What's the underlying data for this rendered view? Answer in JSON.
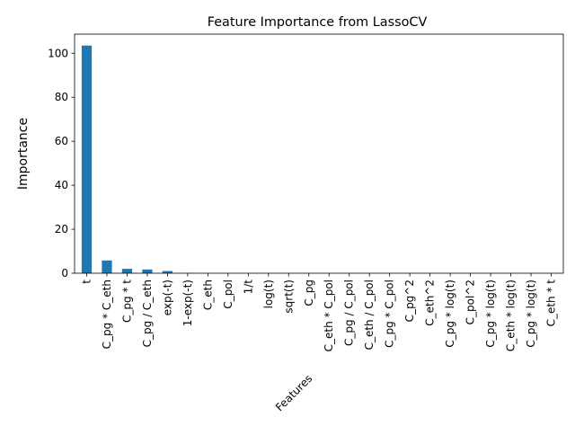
{
  "chart_data": {
    "type": "bar",
    "title": "Feature Importance from LassoCV",
    "xlabel": "Features",
    "ylabel": "Importance",
    "categories": [
      "t",
      "C_pg * C_eth",
      "C_pg * t",
      "C_pg / C_eth",
      "exp(-t)",
      "1-exp(-t)",
      "C_eth",
      "C_pol",
      "1/t",
      "log(t)",
      "sqrt(t)",
      "C_pg",
      "C_eth * C_pol",
      "C_pg / C_pol",
      "C_eth / C_pol",
      "C_pg * C_pol",
      "C_pg^2",
      "C_eth^2",
      "C_pg * log(t)",
      "C_pol^2",
      "C_pg * log(t)",
      "C_eth * log(t)",
      "C_pg * log(t)",
      "C_eth * t"
    ],
    "values": [
      103.5,
      5.8,
      2.0,
      1.7,
      1.0,
      0.1,
      0,
      0,
      0,
      0,
      0,
      0,
      0,
      0,
      0,
      0,
      0,
      0,
      0,
      0,
      0,
      0,
      0,
      0
    ],
    "ylim": [
      0,
      108.7
    ],
    "yticks": [
      0,
      20,
      40,
      60,
      80,
      100
    ],
    "grid": false,
    "bar_color": "#1f77b4"
  }
}
